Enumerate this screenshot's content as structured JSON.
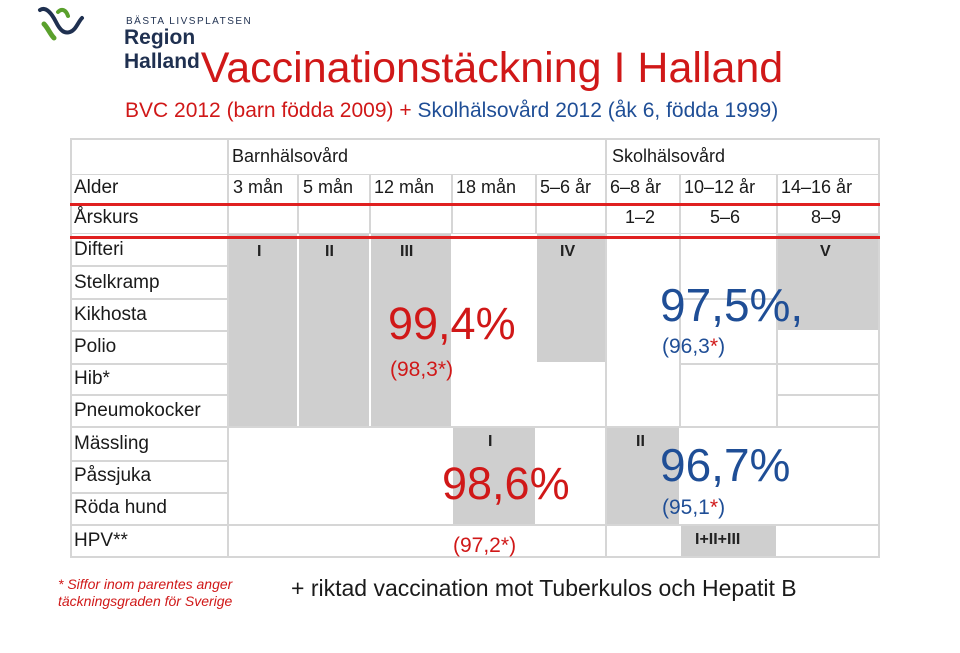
{
  "logo": {
    "tagline": "BÄSTA LIVSPLATSEN",
    "name": "Region Halland"
  },
  "title": "Vaccinationstäckning I Halland",
  "subtitle": {
    "part1": "BVC 2012 (barn födda 2009) + ",
    "part2": "Skolhälsovård 2012 (åk 6, födda 1999)"
  },
  "table": {
    "groups": [
      "Barnhälsovård",
      "Skolhälsovård"
    ],
    "row_labels": [
      "Alder",
      "Årskurs",
      "Difteri",
      "Stelkramp",
      "Kikhosta",
      "Polio",
      "Hib*",
      "Pneumokocker",
      "Mässling",
      "Påssjuka",
      "Röda hund",
      "HPV**"
    ],
    "ages": [
      "3 mån",
      "5 mån",
      "12 mån",
      "18 mån",
      "5–6 år",
      "6–8 år",
      "10–12 år",
      "14–16 år"
    ],
    "grades": [
      "1–2",
      "5–6",
      "8–9"
    ],
    "doses_top": [
      "I",
      "II",
      "III",
      "IV",
      "V"
    ],
    "doses_mmr": [
      "I",
      "II"
    ],
    "hpv_dose": "I+II+III"
  },
  "stats": {
    "bvc_primary": {
      "value": "99,4%",
      "parenthetical": "(98,3",
      "star": "*",
      "close": ")"
    },
    "school_primary": {
      "value": "97,5%,",
      "parenthetical": "(96,3",
      "star": "*",
      "close": ")"
    },
    "bvc_mmr": {
      "value": "98,6%",
      "parenthetical": "(97,2",
      "star": "*",
      "close": ")"
    },
    "school_mmr": {
      "value": "96,7%",
      "parenthetical": "(95,1",
      "star": "*",
      "close": ")"
    }
  },
  "note": {
    "line1": "* Siffor inom parentes anger",
    "line2": "täckningsgraden för Sverige"
  },
  "footer": "+ riktad vaccination mot Tuberkulos och Hepatit B"
}
